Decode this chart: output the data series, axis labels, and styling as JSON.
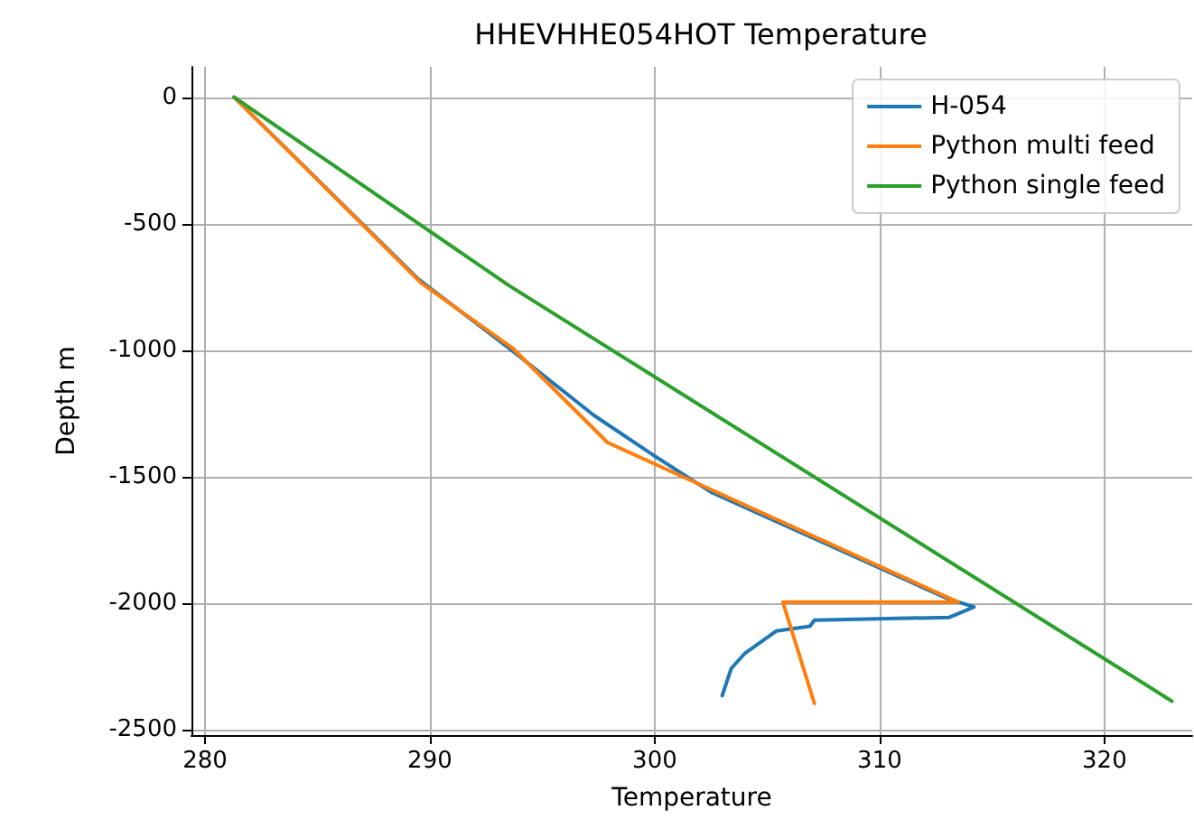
{
  "chart_data": {
    "type": "line",
    "title": "HHEVHHE054HOT Temperature",
    "xlabel": "Temperature",
    "ylabel": "Depth m",
    "xlim": [
      279.4,
      323.9
    ],
    "xticks": [
      280,
      290,
      300,
      310,
      320
    ],
    "ylim": [
      -2520,
      120
    ],
    "yticks": [
      -2500,
      -2000,
      -1500,
      -1000,
      -500,
      0
    ],
    "grid": true,
    "legend": "top right",
    "marker": "none",
    "line_style": "solid",
    "series": [
      {
        "name": "H-054",
        "color": "#1f77b4",
        "x": [
          281.3,
          289.5,
          293.5,
          297.3,
          299.9,
          302.5,
          309,
          313.0,
          314.2,
          313.1,
          307.1,
          306.9,
          305.4,
          304.0,
          303.4,
          303.0
        ],
        "values": [
          0,
          -720,
          -990,
          -1257,
          -1412,
          -1560,
          -1820,
          -1980,
          -2014,
          -2055,
          -2066,
          -2090,
          -2109,
          -2198,
          -2257,
          -2364
        ]
      },
      {
        "name": "Python multi feed",
        "color": "#ff7f0e",
        "x": [
          281.3,
          289.6,
          293.7,
          297.9,
          313.5,
          305.7,
          307.1
        ],
        "values": [
          0,
          -733,
          -993,
          -1364,
          -1995,
          -1995,
          -2395
        ]
      },
      {
        "name": "Python single feed",
        "color": "#2ca02c",
        "x": [
          281.3,
          293.5,
          323.0
        ],
        "values": [
          0,
          -743,
          -2386
        ]
      }
    ]
  }
}
